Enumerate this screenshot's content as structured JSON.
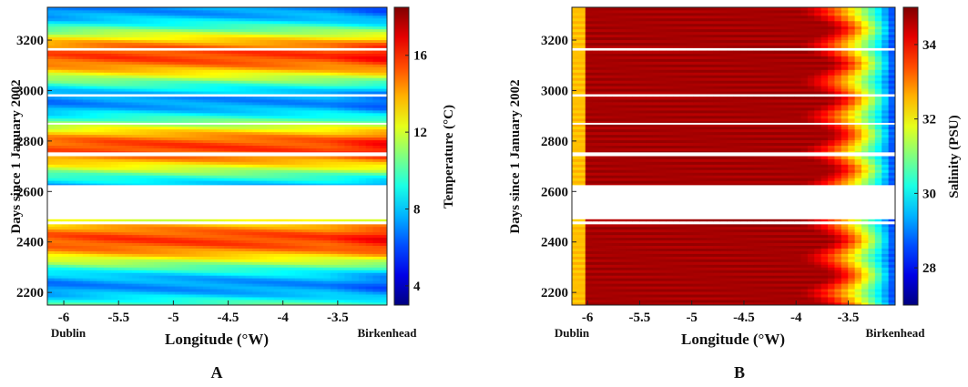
{
  "chart_data": [
    {
      "type": "heatmap",
      "panel_label": "A",
      "xlabel": "Longitude (°W)",
      "ylabel": "Days since 1 January 2002",
      "x_end_labels": [
        "Dublin",
        "Birkenhead"
      ],
      "xticks": [
        -6,
        -5.5,
        -5,
        -4.5,
        -4,
        -3.5
      ],
      "xlim": [
        -6.15,
        -3.05
      ],
      "yticks": [
        2200,
        2400,
        2600,
        2800,
        3000,
        3200
      ],
      "ylim": [
        2150,
        3330
      ],
      "colorbar": {
        "label": "Temperature (°C)",
        "ticks": [
          4,
          8,
          12,
          16
        ],
        "range": [
          3,
          18.5
        ],
        "colormap": "jet"
      },
      "gaps_days": [
        [
          2470,
          2480
        ],
        [
          2490,
          2625
        ],
        [
          2745,
          2755
        ],
        [
          2865,
          2872
        ],
        [
          2978,
          2985
        ],
        [
          3160,
          3168
        ]
      ],
      "description_values": {
        "summer_peaks_day": [
          2420,
          2800,
          3140
        ],
        "winter_troughs_day": [
          2250,
          2640,
          2975
        ]
      }
    },
    {
      "type": "heatmap",
      "panel_label": "B",
      "xlabel": "Longitude (°W)",
      "ylabel": "Days since 1 January 2002",
      "x_end_labels": [
        "Dublin",
        "Birkenhead"
      ],
      "xticks": [
        -6,
        -5.5,
        -5,
        -4.5,
        -4,
        -3.5
      ],
      "xlim": [
        -6.15,
        -3.05
      ],
      "yticks": [
        2200,
        2400,
        2600,
        2800,
        3000,
        3200
      ],
      "ylim": [
        2150,
        3330
      ],
      "colorbar": {
        "label": "Salinity (PSU)",
        "ticks": [
          28,
          30,
          32,
          34
        ],
        "range": [
          27,
          35
        ],
        "colormap": "jet"
      },
      "gaps_days": [
        [
          2470,
          2480
        ],
        [
          2490,
          2625
        ],
        [
          2745,
          2755
        ],
        [
          2865,
          2872
        ],
        [
          2978,
          2985
        ],
        [
          3160,
          3168
        ]
      ]
    }
  ]
}
